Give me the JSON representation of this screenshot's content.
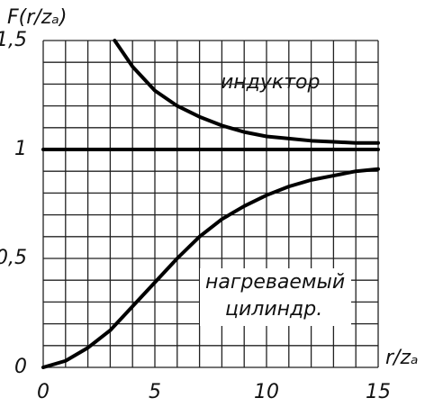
{
  "chart_data": {
    "type": "line",
    "y_label": "F(r/zₐ)",
    "x_label": "r/zₐ",
    "xlim": [
      0,
      15
    ],
    "ylim": [
      0,
      1.5
    ],
    "xticks": [
      0,
      5,
      10,
      15
    ],
    "yticks": [
      0,
      {
        "value": 0.5,
        "label": "0,5"
      },
      1,
      {
        "value": 1.5,
        "label": "1,5"
      }
    ],
    "grid": true,
    "xgrid": [
      0,
      1,
      2,
      3,
      4,
      5,
      6,
      7,
      8,
      9,
      10,
      11,
      12,
      13,
      14,
      15
    ],
    "ygrid": [
      0,
      0.1,
      0.2,
      0.3,
      0.4,
      0.5,
      0.6,
      0.7,
      0.8,
      0.9,
      1,
      1.1,
      1.2,
      1.3,
      1.4,
      1.5
    ],
    "hline": 1,
    "series": [
      {
        "name": "индуктор",
        "color": "#000",
        "x": [
          3.2,
          4,
          5,
          6,
          7,
          8,
          9,
          10,
          11,
          12,
          13,
          14,
          15
        ],
        "values": [
          1.5,
          1.38,
          1.27,
          1.2,
          1.15,
          1.11,
          1.08,
          1.06,
          1.05,
          1.04,
          1.035,
          1.03,
          1.03
        ]
      },
      {
        "name": "нагреваемый цилиндр.",
        "color": "#000",
        "x": [
          0,
          1,
          2,
          3,
          4,
          5,
          6,
          7,
          8,
          9,
          10,
          11,
          12,
          13,
          14,
          15
        ],
        "values": [
          0,
          0.03,
          0.09,
          0.17,
          0.28,
          0.39,
          0.5,
          0.6,
          0.68,
          0.74,
          0.79,
          0.83,
          0.86,
          0.88,
          0.9,
          0.91
        ]
      }
    ]
  }
}
